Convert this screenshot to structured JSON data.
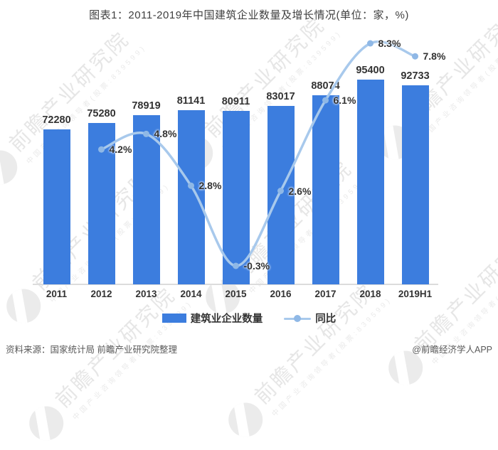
{
  "title": "图表1：2011-2019年中国建筑企业数量及增长情况(单位：家，%)",
  "chart_data": {
    "type": "bar",
    "title": "图表1：2011-2019年中国建筑企业数量及增长情况(单位：家，%)",
    "categories": [
      "2011",
      "2012",
      "2013",
      "2014",
      "2015",
      "2016",
      "2017",
      "2018",
      "2019H1"
    ],
    "series": [
      {
        "name": "建筑业企业数量",
        "type": "bar",
        "unit": "家",
        "values": [
          72280,
          75280,
          78919,
          81141,
          80911,
          83017,
          88074,
          95400,
          92733
        ]
      },
      {
        "name": "同比",
        "type": "line",
        "unit": "%",
        "values": [
          null,
          4.2,
          4.8,
          2.8,
          -0.3,
          2.6,
          6.1,
          8.3,
          7.8
        ]
      }
    ],
    "xlabel": "",
    "ylabel": "",
    "bar_axis_range": [
      0,
      114000
    ],
    "line_axis_range": [
      -1.2,
      9.3
    ],
    "grid": false,
    "data_labels": true,
    "legend_position": "bottom"
  },
  "legend": {
    "bar_label": "建筑业企业数量",
    "line_label": "同比"
  },
  "footer": {
    "source": "资料来源：国家统计局 前瞻产业研究院整理",
    "credit": "@前瞻经济学人APP"
  },
  "watermark": {
    "text": "前瞻产业研究院",
    "subtext": "中国产业咨询领导者(股票:839599)"
  },
  "colors": {
    "bar": "#3C7DDE",
    "line": "#A8C9EC",
    "marker": "#8FB8E6",
    "label_text": "#333333",
    "title_text": "#404040",
    "footer_text": "#595959",
    "axis_line": "#DCDCDC",
    "watermark": "#D3D3D3"
  }
}
